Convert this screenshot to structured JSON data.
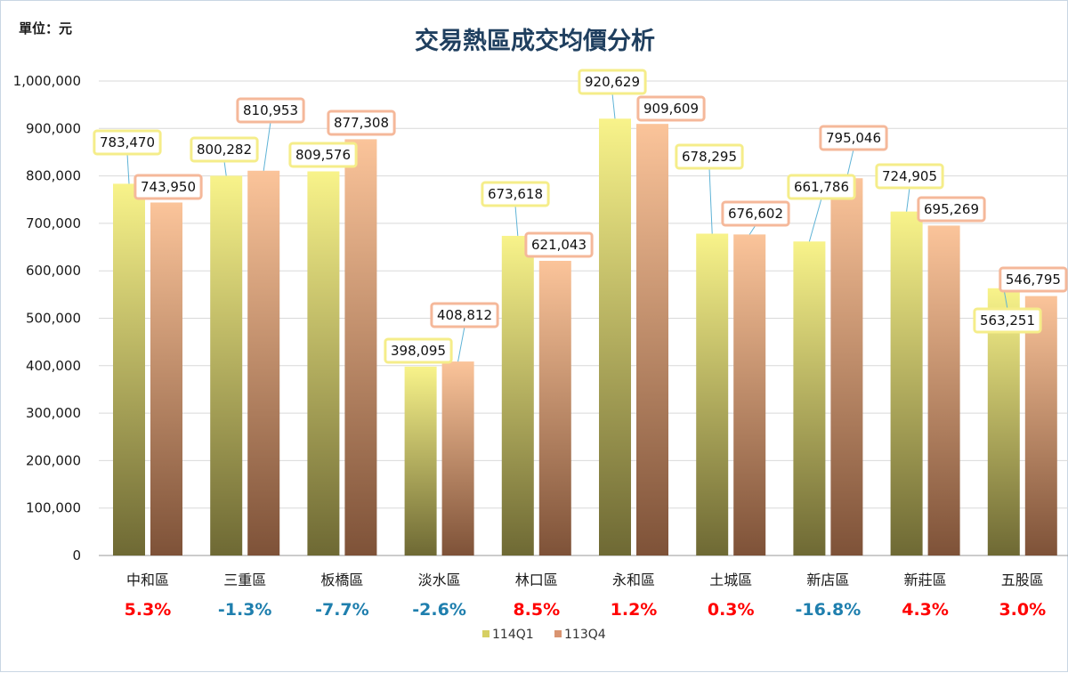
{
  "chart_data": {
    "type": "bar",
    "title": "交易熱區成交均價分析",
    "unit_label": "單位：元",
    "xlabel": "",
    "ylabel": "",
    "ylim": [
      0,
      1000000
    ],
    "yticks": [
      "0",
      "100,000",
      "200,000",
      "300,000",
      "400,000",
      "500,000",
      "600,000",
      "700,000",
      "800,000",
      "900,000",
      "1,000,000"
    ],
    "grid": true,
    "legend_position": "bottom",
    "categories": [
      "中和區",
      "三重區",
      "板橋區",
      "淡水區",
      "林口區",
      "永和區",
      "土城區",
      "新店區",
      "新莊區",
      "五股區"
    ],
    "series": [
      {
        "name": "114Q1",
        "values": [
          783470,
          800282,
          809576,
          398095,
          673618,
          920629,
          678295,
          661786,
          724905,
          563251
        ],
        "labels": [
          "783,470",
          "800,282",
          "809,576",
          "398,095",
          "673,618",
          "920,629",
          "678,295",
          "661,786",
          "724,905",
          "563,251"
        ],
        "colors": {
          "top": "#f8f38a",
          "bottom": "#6e6934",
          "label_border": "#f5ed8a"
        }
      },
      {
        "name": "113Q4",
        "values": [
          743950,
          810953,
          877308,
          408812,
          621043,
          909609,
          676602,
          795046,
          695269,
          546795
        ],
        "labels": [
          "743,950",
          "810,953",
          "877,308",
          "408,812",
          "621,043",
          "909,609",
          "676,602",
          "795,046",
          "695,269",
          "546,795"
        ],
        "colors": {
          "top": "#fbc49a",
          "bottom": "#7e5238",
          "label_border": "#f5b89a"
        }
      }
    ],
    "changes": [
      "5.3%",
      "-1.3%",
      "-7.7%",
      "-2.6%",
      "8.5%",
      "1.2%",
      "0.3%",
      "-16.8%",
      "4.3%",
      "3.0%"
    ],
    "change_colors": {
      "positive": "#ff0000",
      "negative": "#1f7fae"
    }
  }
}
